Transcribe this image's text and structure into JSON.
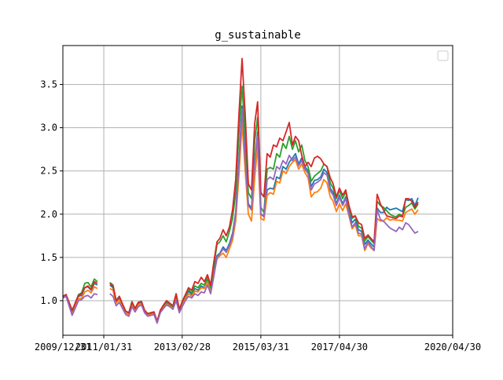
{
  "chart_data": {
    "type": "line",
    "title": "g_sustainable",
    "xlabel": "",
    "ylabel": "",
    "x_tick_labels": [
      "2009/12/31",
      "2011/01/31",
      "2013/02/28",
      "2015/03/31",
      "2017/04/30",
      "2020/04/30"
    ],
    "y_ticks": [
      1.0,
      1.5,
      2.0,
      2.5,
      3.0,
      3.5
    ],
    "x_range": [
      "2009/12/31",
      "2020/04/30"
    ],
    "ylim": [
      0.6,
      3.95
    ],
    "grid": true,
    "legend": {
      "placement": "top-right",
      "entries": []
    },
    "x": [
      "2009/12/31",
      "2010/01/31",
      "2010/03/31",
      "2010/05/31",
      "2010/06/30",
      "2010/07/31",
      "2010/08/31",
      "2010/09/30",
      "2010/10/31",
      "2010/11/30",
      "2011/02/28",
      "2011/03/31",
      "2011/04/30",
      "2011/05/31",
      "2011/06/30",
      "2011/07/31",
      "2011/08/31",
      "2011/09/30",
      "2011/10/31",
      "2011/11/30",
      "2011/12/31",
      "2012/01/31",
      "2012/02/29",
      "2012/03/31",
      "2012/04/30",
      "2012/05/31",
      "2012/06/30",
      "2012/07/31",
      "2012/08/31",
      "2012/09/30",
      "2012/10/31",
      "2012/11/30",
      "2012/12/31",
      "2013/01/31",
      "2013/02/28",
      "2013/03/31",
      "2013/04/30",
      "2013/05/31",
      "2013/06/30",
      "2013/07/31",
      "2013/08/31",
      "2013/09/30",
      "2013/10/31",
      "2013/11/30",
      "2013/12/31",
      "2014/01/31",
      "2014/02/28",
      "2014/03/31",
      "2014/04/30",
      "2014/05/31",
      "2014/06/30",
      "2014/07/31",
      "2014/08/31",
      "2014/09/30",
      "2014/10/31",
      "2014/11/30",
      "2014/12/31",
      "2015/01/31",
      "2015/02/28",
      "2015/03/31",
      "2015/04/30",
      "2015/05/31",
      "2015/06/30",
      "2015/07/31",
      "2015/08/31",
      "2015/09/30",
      "2015/10/31",
      "2015/11/30",
      "2015/12/31",
      "2016/01/31",
      "2016/02/29",
      "2016/03/31",
      "2016/04/30",
      "2016/05/31",
      "2016/06/30",
      "2016/07/31",
      "2016/08/31",
      "2016/09/30",
      "2016/10/31",
      "2016/11/30",
      "2016/12/31",
      "2017/01/31",
      "2017/02/28",
      "2017/03/31",
      "2017/04/30",
      "2017/05/31",
      "2017/06/30",
      "2017/07/31",
      "2017/08/31",
      "2017/09/30",
      "2017/10/31",
      "2017/11/30",
      "2017/12/31",
      "2018/01/31",
      "2018/02/28",
      "2018/03/31",
      "2018/04/30",
      "2018/05/31",
      "2018/06/30",
      "2018/07/31",
      "2018/08/31",
      "2018/09/30",
      "2018/10/31",
      "2018/11/30",
      "2018/12/31",
      "2019/01/31",
      "2019/02/28",
      "2019/03/31",
      "2019/04/30",
      "2019/05/31",
      "2019/06/30",
      "2019/07/31",
      "2019/08/31",
      "2019/09/30",
      "2019/10/31",
      "2019/11/30",
      "2019/12/31"
    ],
    "series": [
      {
        "color": "#1f77b4",
        "values": [
          1.04,
          1.06,
          0.86,
          1.05,
          1.06,
          1.15,
          1.16,
          1.12,
          1.2,
          1.18,
          null,
          1.18,
          1.15,
          0.99,
          1.03,
          0.95,
          0.87,
          0.85,
          0.97,
          0.9,
          0.97,
          0.98,
          0.88,
          0.84,
          0.85,
          0.86,
          0.75,
          0.88,
          0.93,
          0.98,
          0.95,
          0.92,
          1.05,
          0.88,
          0.97,
          1.04,
          1.11,
          1.07,
          1.14,
          1.12,
          1.17,
          1.15,
          1.24,
          1.12,
          1.35,
          1.52,
          1.55,
          1.62,
          1.58,
          1.66,
          1.78,
          2.02,
          2.62,
          3.25,
          2.68,
          2.12,
          2.07,
          2.6,
          2.95,
          2.0,
          1.98,
          2.28,
          2.3,
          2.29,
          2.43,
          2.41,
          2.55,
          2.52,
          2.6,
          2.65,
          2.7,
          2.58,
          2.65,
          2.55,
          2.5,
          2.32,
          2.39,
          2.4,
          2.43,
          2.52,
          2.48,
          2.3,
          2.25,
          2.12,
          2.22,
          2.12,
          2.2,
          2.02,
          1.9,
          1.94,
          1.82,
          1.8,
          1.65,
          1.7,
          1.66,
          1.62,
          2.07,
          2.02,
          2.02,
          2.08,
          2.05,
          2.06,
          2.07,
          2.05,
          2.03,
          2.17,
          2.16,
          2.18,
          2.1,
          2.19,
          null,
          null,
          null,
          null,
          null,
          null,
          null
        ]
      },
      {
        "color": "#ff7f0e",
        "values": [
          1.04,
          1.05,
          0.84,
          1.02,
          1.03,
          1.1,
          1.12,
          1.09,
          1.16,
          1.14,
          null,
          1.14,
          1.12,
          0.97,
          1.01,
          0.93,
          0.86,
          0.84,
          0.95,
          0.89,
          0.95,
          0.96,
          0.87,
          0.83,
          0.84,
          0.85,
          0.75,
          0.87,
          0.92,
          0.96,
          0.94,
          0.91,
          1.02,
          0.87,
          0.95,
          1.02,
          1.08,
          1.05,
          1.11,
          1.1,
          1.15,
          1.14,
          1.22,
          1.1,
          1.31,
          1.48,
          1.52,
          1.55,
          1.5,
          1.6,
          1.7,
          1.92,
          2.45,
          3.05,
          2.5,
          2.0,
          1.92,
          2.42,
          2.78,
          1.95,
          1.93,
          2.22,
          2.25,
          2.23,
          2.38,
          2.36,
          2.5,
          2.47,
          2.55,
          2.6,
          2.63,
          2.52,
          2.58,
          2.48,
          2.42,
          2.2,
          2.25,
          2.26,
          2.3,
          2.4,
          2.36,
          2.2,
          2.15,
          2.03,
          2.12,
          2.04,
          2.12,
          1.98,
          1.83,
          1.88,
          1.75,
          1.75,
          1.58,
          1.66,
          1.61,
          1.58,
          1.95,
          1.92,
          1.92,
          1.96,
          1.93,
          1.94,
          1.93,
          1.93,
          1.92,
          2.02,
          2.04,
          2.06,
          2.0,
          2.05,
          null,
          null,
          null,
          null,
          null,
          null,
          null
        ]
      },
      {
        "color": "#2ca02c",
        "values": [
          1.05,
          1.07,
          0.88,
          1.07,
          1.09,
          1.2,
          1.21,
          1.16,
          1.25,
          1.22,
          null,
          1.21,
          1.18,
          1.0,
          1.05,
          0.96,
          0.88,
          0.86,
          0.99,
          0.91,
          0.98,
          0.99,
          0.89,
          0.85,
          0.86,
          0.87,
          0.76,
          0.89,
          0.94,
          0.99,
          0.96,
          0.93,
          1.07,
          0.89,
          0.98,
          1.06,
          1.13,
          1.09,
          1.17,
          1.15,
          1.2,
          1.18,
          1.27,
          1.15,
          1.4,
          1.65,
          1.68,
          1.75,
          1.68,
          1.8,
          1.95,
          2.25,
          2.95,
          3.48,
          2.92,
          2.25,
          2.18,
          2.85,
          3.12,
          2.08,
          2.02,
          2.52,
          2.54,
          2.52,
          2.7,
          2.66,
          2.82,
          2.76,
          2.9,
          2.75,
          2.85,
          2.72,
          2.8,
          2.62,
          2.55,
          2.38,
          2.44,
          2.47,
          2.5,
          2.58,
          2.55,
          2.36,
          2.3,
          2.18,
          2.28,
          2.18,
          2.26,
          2.08,
          1.95,
          1.98,
          1.86,
          1.84,
          1.69,
          1.74,
          1.7,
          1.66,
          2.15,
          2.1,
          2.08,
          2.04,
          2.0,
          1.98,
          1.97,
          2.0,
          1.98,
          2.08,
          2.1,
          2.13,
          2.06,
          2.12,
          null,
          null,
          null,
          null,
          null,
          null,
          null
        ]
      },
      {
        "color": "#d62728",
        "values": [
          1.05,
          1.07,
          0.89,
          1.06,
          1.08,
          1.15,
          1.17,
          1.13,
          1.22,
          1.2,
          null,
          1.2,
          1.17,
          1.0,
          1.05,
          0.96,
          0.88,
          0.86,
          0.98,
          0.91,
          0.98,
          0.99,
          0.89,
          0.85,
          0.86,
          0.87,
          0.76,
          0.89,
          0.95,
          1.0,
          0.97,
          0.94,
          1.08,
          0.9,
          0.99,
          1.07,
          1.15,
          1.12,
          1.22,
          1.2,
          1.27,
          1.22,
          1.3,
          1.18,
          1.45,
          1.68,
          1.72,
          1.82,
          1.75,
          1.85,
          2.05,
          2.4,
          3.15,
          3.8,
          3.15,
          2.35,
          2.28,
          3.05,
          3.3,
          2.25,
          2.2,
          2.7,
          2.66,
          2.8,
          2.78,
          2.88,
          2.85,
          2.95,
          3.06,
          2.8,
          2.9,
          2.85,
          2.68,
          2.55,
          2.6,
          2.55,
          2.65,
          2.67,
          2.64,
          2.58,
          2.55,
          2.42,
          2.35,
          2.2,
          2.3,
          2.22,
          2.28,
          2.1,
          1.97,
          1.98,
          1.9,
          1.88,
          1.72,
          1.76,
          1.72,
          1.68,
          2.23,
          2.12,
          2.05,
          1.98,
          1.97,
          1.96,
          1.95,
          1.98,
          1.97,
          2.18,
          2.18,
          2.15,
          2.08,
          2.14,
          null,
          null,
          null,
          null,
          null,
          null,
          null
        ]
      },
      {
        "color": "#9467bd",
        "values": [
          1.03,
          1.05,
          0.83,
          1.0,
          1.01,
          1.05,
          1.06,
          1.03,
          1.08,
          1.07,
          null,
          1.08,
          1.05,
          0.94,
          0.98,
          0.91,
          0.84,
          0.82,
          0.93,
          0.87,
          0.93,
          0.95,
          0.86,
          0.82,
          0.83,
          0.84,
          0.74,
          0.86,
          0.91,
          0.95,
          0.93,
          0.9,
          1.0,
          0.86,
          0.93,
          1.0,
          1.05,
          1.03,
          1.08,
          1.06,
          1.1,
          1.09,
          1.18,
          1.08,
          1.28,
          1.5,
          1.54,
          1.6,
          1.56,
          1.64,
          1.75,
          2.0,
          2.58,
          3.22,
          2.62,
          2.1,
          2.05,
          2.62,
          2.9,
          2.0,
          1.97,
          2.4,
          2.43,
          2.4,
          2.55,
          2.52,
          2.62,
          2.58,
          2.68,
          2.62,
          2.66,
          2.56,
          2.62,
          2.52,
          2.47,
          2.28,
          2.35,
          2.37,
          2.4,
          2.48,
          2.45,
          2.27,
          2.22,
          2.1,
          2.2,
          2.1,
          2.18,
          2.0,
          1.85,
          1.9,
          1.78,
          1.77,
          1.6,
          1.68,
          1.63,
          1.58,
          2.05,
          1.94,
          1.92,
          1.88,
          1.84,
          1.82,
          1.8,
          1.85,
          1.82,
          1.9,
          1.88,
          1.83,
          1.78,
          1.8,
          null,
          null,
          null,
          null,
          null,
          null,
          null
        ]
      }
    ]
  }
}
